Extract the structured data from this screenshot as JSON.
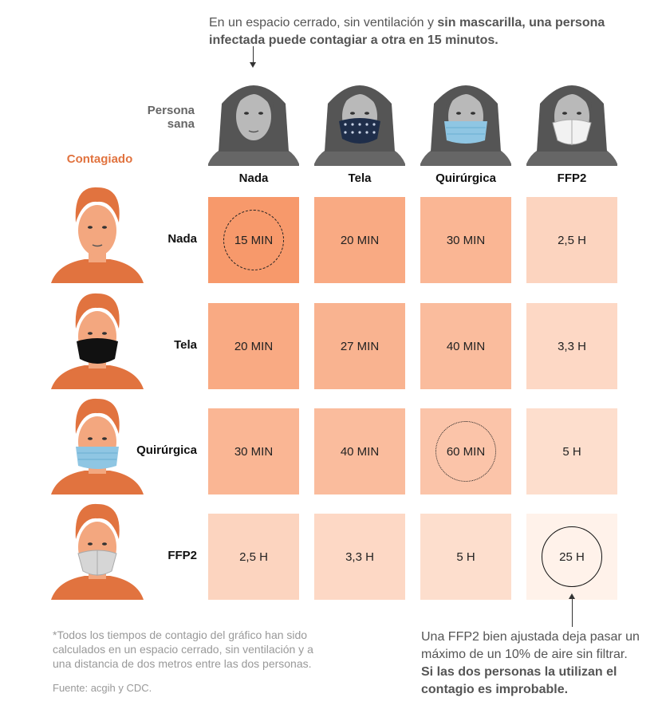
{
  "annotations": {
    "top_note_pre": "En un espacio cerrado, sin ventilación y ",
    "top_note_bold": "sin mascarilla, una persona infectada puede contagiar a otra en 15 minutos.",
    "healthy_label": "Persona sana",
    "infected_label": "Contagiado",
    "footnote": "*Todos los tiempos de contagio del gráfico han sido calculados en un espacio cerrado, sin ventilación y a una distancia de dos metros entre las dos personas.",
    "source": "Fuente: acgih y CDC.",
    "bottom_note": "Una FFP2 bien ajustada deja pasar un máximo de un 10% de aire sin filtrar.",
    "bottom_note_bold": "Si las dos personas la utilizan el contagio es improbable."
  },
  "colors": {
    "accent": "#e1733f",
    "scale_high": "#f7996b",
    "scale_low": "#fff2ea"
  },
  "chart_data": {
    "type": "heatmap",
    "title": "",
    "x_axis_label": "Persona sana",
    "y_axis_label": "Contagiado",
    "columns": [
      "Nada",
      "Tela",
      "Quirúrgica",
      "FFP2"
    ],
    "rows": [
      "Nada",
      "Tela",
      "Quirúrgica",
      "FFP2"
    ],
    "minutes": [
      [
        15,
        20,
        30,
        150
      ],
      [
        20,
        27,
        40,
        198
      ],
      [
        30,
        40,
        60,
        300
      ],
      [
        150,
        198,
        300,
        1500
      ]
    ],
    "labels": [
      [
        "15 MIN",
        "20 MIN",
        "30 MIN",
        "2,5 H"
      ],
      [
        "20 MIN",
        "27 MIN",
        "40 MIN",
        "3,3 H"
      ],
      [
        "30 MIN",
        "40 MIN",
        "60 MIN",
        "5 H"
      ],
      [
        "2,5 H",
        "3,3 H",
        "5 H",
        "25 H"
      ]
    ],
    "highlighted": [
      {
        "row": 0,
        "col": 0,
        "style": "dashed"
      },
      {
        "row": 2,
        "col": 2,
        "style": "dotted"
      },
      {
        "row": 3,
        "col": 3,
        "style": "solid"
      }
    ]
  }
}
